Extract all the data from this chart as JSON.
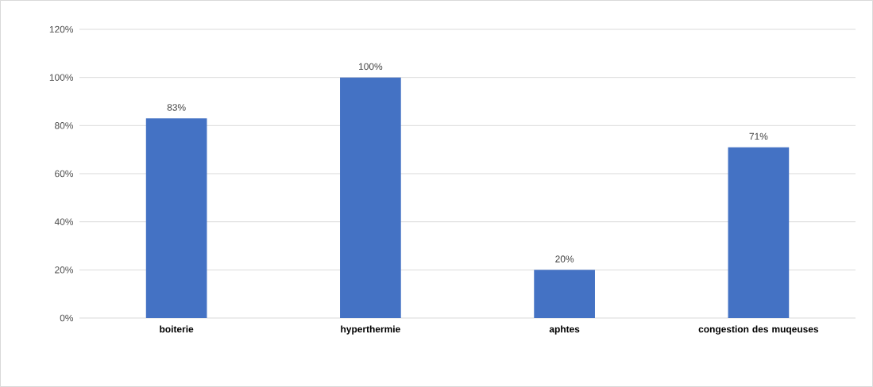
{
  "chart_data": {
    "type": "bar",
    "categories": [
      "boiterie",
      "hyperthermie",
      "aphtes",
      "congestion des muqeuses"
    ],
    "values": [
      83,
      100,
      20,
      71
    ],
    "value_labels": [
      "83%",
      "100%",
      "20%",
      "71%"
    ],
    "color": "#4472c4",
    "ylim": [
      0,
      120
    ],
    "yticks": [
      {
        "value": 0,
        "label": "0%"
      },
      {
        "value": 20,
        "label": "20%"
      },
      {
        "value": 40,
        "label": "40%"
      },
      {
        "value": 60,
        "label": "60%"
      },
      {
        "value": 80,
        "label": "80%"
      },
      {
        "value": 100,
        "label": "100%"
      },
      {
        "value": 120,
        "label": "120%"
      }
    ],
    "grid": "y"
  }
}
